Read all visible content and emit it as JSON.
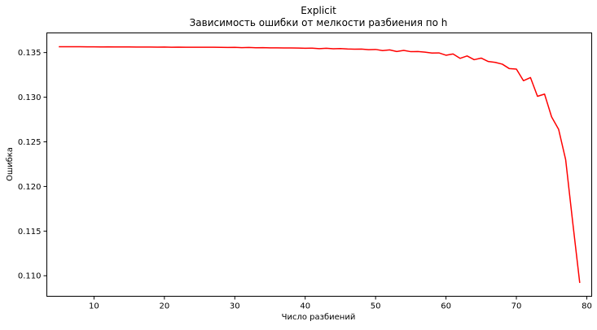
{
  "chart_data": {
    "type": "line",
    "title": "Explicit",
    "subtitle": "Зависимость ошибки от мелкости разбиения по h",
    "xlabel": "Число разбиений",
    "ylabel": "Ошибка",
    "xlim": [
      3.3,
      80.7
    ],
    "ylim": [
      0.1077,
      0.1372
    ],
    "xticks": [
      10,
      20,
      30,
      40,
      50,
      60,
      70,
      80
    ],
    "xtick_labels": [
      "10",
      "20",
      "30",
      "40",
      "50",
      "60",
      "70",
      "80"
    ],
    "yticks": [
      0.11,
      0.115,
      0.12,
      0.125,
      0.13,
      0.135
    ],
    "ytick_labels": [
      "0.110",
      "0.115",
      "0.120",
      "0.125",
      "0.130",
      "0.135"
    ],
    "grid": false,
    "legend": false,
    "series": [
      {
        "color": "#ff0000",
        "x": [
          5,
          6,
          7,
          8,
          9,
          10,
          11,
          12,
          13,
          14,
          15,
          16,
          17,
          18,
          19,
          20,
          21,
          22,
          23,
          24,
          25,
          26,
          27,
          28,
          29,
          30,
          31,
          32,
          33,
          34,
          35,
          36,
          37,
          38,
          39,
          40,
          41,
          42,
          43,
          44,
          45,
          46,
          47,
          48,
          49,
          50,
          51,
          52,
          53,
          54,
          55,
          56,
          57,
          58,
          59,
          60,
          61,
          62,
          63,
          64,
          65,
          66,
          67,
          68,
          69,
          70,
          71,
          72,
          73,
          74,
          75,
          76,
          77,
          78,
          79
        ],
        "y": [
          0.13565,
          0.13565,
          0.13565,
          0.13565,
          0.13564,
          0.13564,
          0.13563,
          0.13564,
          0.13563,
          0.13563,
          0.13563,
          0.13562,
          0.13562,
          0.13562,
          0.13561,
          0.13562,
          0.1356,
          0.13561,
          0.1356,
          0.1356,
          0.13559,
          0.13559,
          0.13559,
          0.13558,
          0.13557,
          0.13558,
          0.13555,
          0.13557,
          0.13554,
          0.13555,
          0.13553,
          0.13553,
          0.13552,
          0.13552,
          0.1355,
          0.13548,
          0.13549,
          0.13544,
          0.13548,
          0.13542,
          0.13545,
          0.1354,
          0.13538,
          0.13539,
          0.13532,
          0.13535,
          0.13522,
          0.1353,
          0.13512,
          0.13524,
          0.1351,
          0.13512,
          0.13505,
          0.13495,
          0.13496,
          0.1347,
          0.13484,
          0.13435,
          0.13462,
          0.1342,
          0.13438,
          0.134,
          0.1339,
          0.1337,
          0.1332,
          0.13315,
          0.13185,
          0.1322,
          0.1301,
          0.13035,
          0.1278,
          0.1264,
          0.123,
          0.116,
          0.1092
        ]
      }
    ]
  }
}
